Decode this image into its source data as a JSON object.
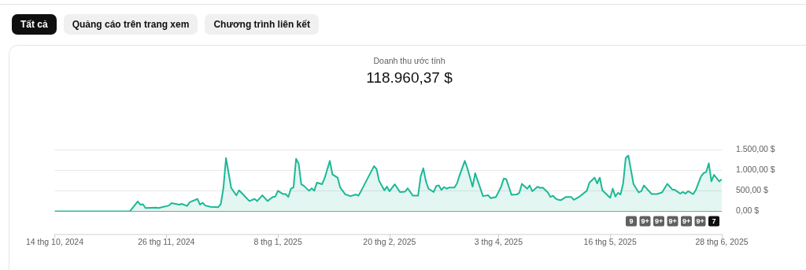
{
  "chart_data": {
    "type": "area",
    "title": "Doanh thu ước tính",
    "subtitle": "118.960,37 $",
    "annotations": [
      "Tất cả",
      "Quảng cáo trên trang xem",
      "Chương trình liên kết",
      "9",
      "9+",
      "9+",
      "9+",
      "9+",
      "9+",
      "7"
    ],
    "x": [
      "2024-10-14",
      "2024-11-12",
      "2024-11-15",
      "2024-11-16",
      "2024-11-17",
      "2024-11-18",
      "2024-11-22",
      "2024-11-23",
      "2024-11-27",
      "2024-11-28",
      "2024-12-01",
      "2024-12-02",
      "2024-12-04",
      "2024-12-05",
      "2024-12-08",
      "2024-12-09",
      "2024-12-10",
      "2024-12-11",
      "2024-12-13",
      "2024-12-16",
      "2024-12-17",
      "2024-12-18",
      "2024-12-19",
      "2024-12-21",
      "2024-12-23",
      "2024-12-24",
      "2024-12-25",
      "2024-12-28",
      "2024-12-30",
      "2024-12-31",
      "2025-01-02",
      "2025-01-04",
      "2025-01-06",
      "2025-01-07",
      "2025-01-08",
      "2025-01-10",
      "2025-01-11",
      "2025-01-12",
      "2025-01-13",
      "2025-01-14",
      "2025-01-15",
      "2025-01-16",
      "2025-01-17",
      "2025-01-18",
      "2025-01-20",
      "2025-01-21",
      "2025-01-22",
      "2025-01-23",
      "2025-01-25",
      "2025-01-26",
      "2025-01-28",
      "2025-01-29",
      "2025-01-31",
      "2025-02-01",
      "2025-02-03",
      "2025-02-05",
      "2025-02-07",
      "2025-02-08",
      "2025-02-09",
      "2025-02-14",
      "2025-02-15",
      "2025-02-16",
      "2025-02-18",
      "2025-02-19",
      "2025-02-20",
      "2025-02-22",
      "2025-02-24",
      "2025-02-26",
      "2025-02-27",
      "2025-03-01",
      "2025-03-03",
      "2025-03-04",
      "2025-03-05",
      "2025-03-06",
      "2025-03-07",
      "2025-03-09",
      "2025-03-10",
      "2025-03-11",
      "2025-03-12",
      "2025-03-13",
      "2025-03-14",
      "2025-03-15",
      "2025-03-17",
      "2025-03-18",
      "2025-03-19",
      "2025-03-21",
      "2025-03-22",
      "2025-03-24",
      "2025-03-25",
      "2025-03-28",
      "2025-03-30",
      "2025-03-31",
      "2025-04-02",
      "2025-04-04",
      "2025-04-05",
      "2025-04-06",
      "2025-04-08",
      "2025-04-10",
      "2025-04-11",
      "2025-04-12",
      "2025-04-14",
      "2025-04-15",
      "2025-04-16",
      "2025-04-18",
      "2025-04-19",
      "2025-04-20",
      "2025-04-22",
      "2025-04-23",
      "2025-04-24",
      "2025-04-25",
      "2025-04-26",
      "2025-04-27",
      "2025-04-29",
      "2025-05-01",
      "2025-05-02",
      "2025-05-04",
      "2025-05-07",
      "2025-05-08",
      "2025-05-10",
      "2025-05-11",
      "2025-05-12",
      "2025-05-13",
      "2025-05-16",
      "2025-05-17",
      "2025-05-18",
      "2025-05-19",
      "2025-05-20",
      "2025-05-21",
      "2025-05-22",
      "2025-05-23",
      "2025-05-25",
      "2025-05-27",
      "2025-05-28",
      "2025-05-29",
      "2025-06-01",
      "2025-06-03",
      "2025-06-05",
      "2025-06-07",
      "2025-06-09",
      "2025-06-10",
      "2025-06-12",
      "2025-06-13",
      "2025-06-14",
      "2025-06-15",
      "2025-06-17",
      "2025-06-18",
      "2025-06-20",
      "2025-06-21",
      "2025-06-22",
      "2025-06-23",
      "2025-06-24",
      "2025-06-25",
      "2025-06-27",
      "2025-06-28"
    ],
    "series": [
      {
        "color": "#1cb896",
        "values": [
          0,
          0,
          240,
          160,
          170,
          80,
          90,
          80,
          140,
          200,
          160,
          180,
          130,
          220,
          300,
          160,
          210,
          140,
          110,
          100,
          180,
          570,
          1300,
          570,
          390,
          510,
          450,
          250,
          300,
          250,
          390,
          250,
          350,
          360,
          500,
          420,
          420,
          350,
          550,
          580,
          1280,
          1160,
          660,
          620,
          500,
          560,
          500,
          700,
          660,
          810,
          1230,
          900,
          820,
          580,
          410,
          370,
          410,
          380,
          490,
          1100,
          1030,
          740,
          510,
          600,
          490,
          660,
          470,
          480,
          560,
          380,
          380,
          850,
          1050,
          740,
          550,
          470,
          620,
          630,
          520,
          590,
          550,
          580,
          580,
          680,
          880,
          1230,
          1050,
          600,
          930,
          370,
          390,
          320,
          350,
          600,
          800,
          780,
          400,
          410,
          450,
          670,
          550,
          630,
          490,
          600,
          570,
          580,
          460,
          350,
          380,
          310,
          280,
          270,
          350,
          350,
          280,
          350,
          500,
          700,
          820,
          680,
          820,
          510,
          330,
          550,
          360,
          450,
          410,
          680,
          1300,
          1360,
          660,
          460,
          490,
          630,
          420,
          420,
          460,
          670,
          530,
          520,
          430,
          470,
          430,
          490,
          420,
          520,
          850,
          930,
          960,
          1170,
          730,
          890,
          730,
          780
        ]
      }
    ],
    "xlim": [
      "2024-10-14",
      "2025-06-28"
    ],
    "xticks": [
      {
        "value": "2024-10-14",
        "label": "14 thg 10, 2024"
      },
      {
        "value": "2024-11-26",
        "label": "26 thg 11, 2024"
      },
      {
        "value": "2025-01-08",
        "label": "8 thg 1, 2025"
      },
      {
        "value": "2025-02-20",
        "label": "20 thg 2, 2025"
      },
      {
        "value": "2025-04-03",
        "label": "3 thg 4, 2025"
      },
      {
        "value": "2025-05-16",
        "label": "16 thg 5, 2025"
      },
      {
        "value": "2025-06-28",
        "label": "28 thg 6, 2025"
      }
    ],
    "ylim": [
      0,
      1500
    ],
    "yticks": [
      {
        "value": 0,
        "label": "0,00 $"
      },
      {
        "value": 500,
        "label": "500,00 $"
      },
      {
        "value": 1000,
        "label": "1.000,00 $"
      },
      {
        "value": 1500,
        "label": "1.500,00 $"
      }
    ],
    "grid": "y",
    "legend": false,
    "marker": "none",
    "line_style": "solid"
  }
}
